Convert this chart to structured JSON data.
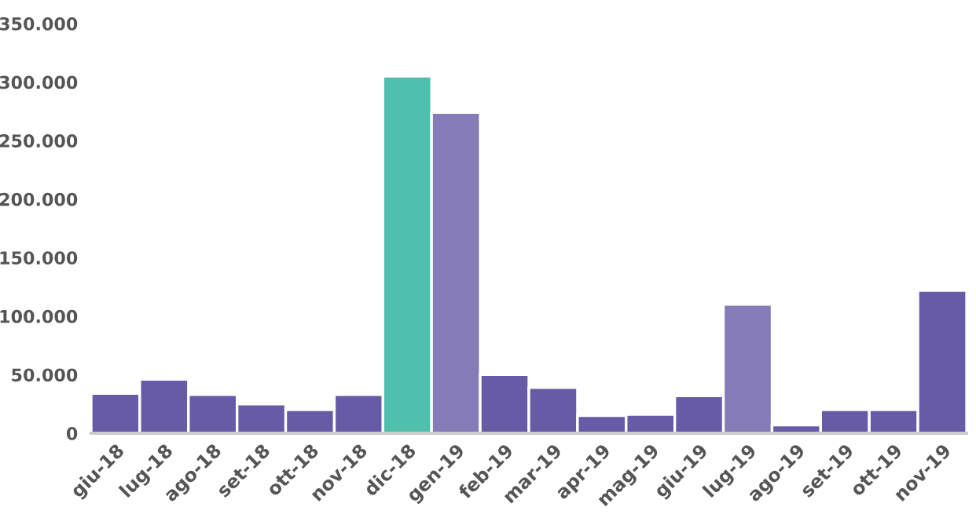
{
  "chart_data": {
    "type": "bar",
    "categories": [
      "giu-18",
      "lug-18",
      "ago-18",
      "set-18",
      "ott-18",
      "nov-18",
      "dic-18",
      "gen-19",
      "feb-19",
      "mar-19",
      "apr-19",
      "mag-19",
      "giu-19",
      "lug-19",
      "ago-19",
      "set-19",
      "ott-19",
      "nov-19"
    ],
    "values": [
      34000,
      46000,
      33000,
      25000,
      20000,
      33000,
      305000,
      274000,
      50000,
      39000,
      15000,
      16000,
      32000,
      110000,
      7000,
      20000,
      20000,
      122000
    ],
    "colors": [
      "#675ba7",
      "#675ba7",
      "#675ba7",
      "#675ba7",
      "#675ba7",
      "#675ba7",
      "#4fbfae",
      "#857bb6",
      "#675ba7",
      "#675ba7",
      "#675ba7",
      "#675ba7",
      "#675ba7",
      "#857bb6",
      "#675ba7",
      "#675ba7",
      "#675ba7",
      "#675ba7"
    ],
    "ylim": [
      0,
      350000
    ],
    "yticks": [
      {
        "value": 0,
        "label": "0"
      },
      {
        "value": 50000,
        "label": "50.000"
      },
      {
        "value": 100000,
        "label": "100.000"
      },
      {
        "value": 150000,
        "label": "150.000"
      },
      {
        "value": 200000,
        "label": "200.000"
      },
      {
        "value": 250000,
        "label": "250.000"
      },
      {
        "value": 300000,
        "label": "300.000"
      },
      {
        "value": 350000,
        "label": "350.000"
      }
    ],
    "grid": false
  }
}
